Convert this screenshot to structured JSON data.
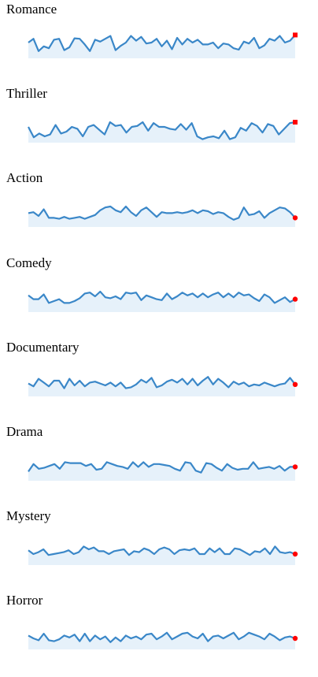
{
  "colors": {
    "line": "#3a87c8",
    "fill": "#e6f1fa",
    "end_marker": "#ff0000"
  },
  "chart_data": [
    {
      "type": "area",
      "title": "Romance",
      "end_marker": "square",
      "values": [
        60,
        68,
        42,
        52,
        48,
        66,
        68,
        44,
        50,
        69,
        68,
        56,
        42,
        66,
        62,
        68,
        74,
        44,
        53,
        60,
        74,
        64,
        72,
        58,
        60,
        68,
        52,
        64,
        46,
        70,
        56,
        68,
        60,
        66,
        56,
        56,
        60,
        48,
        58,
        56,
        48,
        45,
        62,
        58,
        70,
        48,
        54,
        68,
        64,
        74,
        60,
        64,
        76
      ]
    },
    {
      "type": "area",
      "title": "Thriller",
      "end_marker": "square",
      "values": [
        60,
        38,
        46,
        40,
        44,
        64,
        46,
        50,
        60,
        56,
        40,
        60,
        64,
        54,
        44,
        70,
        62,
        64,
        48,
        60,
        62,
        70,
        52,
        68,
        60,
        60,
        56,
        54,
        66,
        54,
        68,
        40,
        34,
        38,
        40,
        36,
        52,
        34,
        38,
        58,
        52,
        68,
        62,
        48,
        66,
        62,
        44,
        56,
        68,
        70
      ]
    },
    {
      "type": "area",
      "title": "Action",
      "end_marker": "circle",
      "values": [
        56,
        58,
        50,
        64,
        46,
        46,
        44,
        48,
        44,
        46,
        48,
        44,
        48,
        52,
        62,
        68,
        70,
        62,
        58,
        70,
        58,
        50,
        62,
        68,
        58,
        48,
        58,
        56,
        56,
        58,
        56,
        58,
        62,
        56,
        62,
        60,
        54,
        58,
        56,
        48,
        42,
        46,
        68,
        52,
        54,
        60,
        46,
        56,
        62,
        68,
        66,
        58,
        46
      ]
    },
    {
      "type": "area",
      "title": "Comedy",
      "end_marker": "circle",
      "values": [
        62,
        54,
        54,
        64,
        46,
        50,
        54,
        46,
        46,
        50,
        56,
        66,
        68,
        60,
        70,
        58,
        56,
        60,
        54,
        68,
        66,
        68,
        52,
        62,
        58,
        54,
        52,
        66,
        54,
        60,
        68,
        62,
        66,
        58,
        66,
        58,
        64,
        68,
        58,
        66,
        58,
        68,
        62,
        64,
        56,
        50,
        64,
        58,
        46,
        52,
        58,
        48,
        54
      ]
    },
    {
      "type": "area",
      "title": "Documentary",
      "end_marker": "circle",
      "values": [
        54,
        48,
        64,
        56,
        48,
        60,
        60,
        44,
        64,
        50,
        60,
        48,
        56,
        58,
        54,
        50,
        56,
        48,
        56,
        44,
        46,
        52,
        62,
        56,
        66,
        46,
        50,
        58,
        62,
        56,
        64,
        52,
        64,
        50,
        60,
        68,
        52,
        64,
        56,
        46,
        58,
        52,
        56,
        48,
        52,
        50,
        56,
        52,
        48,
        52,
        54,
        66,
        52
      ]
    },
    {
      "type": "area",
      "title": "Drama",
      "end_marker": "circle",
      "values": [
        46,
        62,
        52,
        54,
        58,
        62,
        52,
        66,
        64,
        64,
        64,
        58,
        62,
        50,
        52,
        66,
        62,
        58,
        56,
        52,
        66,
        56,
        66,
        56,
        62,
        62,
        60,
        58,
        52,
        48,
        66,
        64,
        48,
        44,
        64,
        62,
        54,
        48,
        62,
        54,
        50,
        52,
        52,
        66,
        52,
        54,
        56,
        52,
        58,
        48,
        56,
        56
      ]
    },
    {
      "type": "area",
      "title": "Mystery",
      "end_marker": "circle",
      "values": [
        58,
        50,
        54,
        60,
        48,
        50,
        52,
        54,
        58,
        50,
        54,
        66,
        60,
        64,
        56,
        56,
        50,
        56,
        58,
        60,
        48,
        56,
        54,
        62,
        58,
        50,
        60,
        64,
        60,
        50,
        58,
        60,
        58,
        62,
        50,
        50,
        62,
        54,
        62,
        50,
        50,
        62,
        60,
        54,
        48,
        56,
        54,
        62,
        50,
        66,
        54,
        52,
        54,
        50
      ]
    },
    {
      "type": "area",
      "title": "Horror",
      "end_marker": "circle",
      "values": [
        56,
        50,
        46,
        60,
        46,
        44,
        48,
        56,
        52,
        58,
        44,
        60,
        44,
        56,
        48,
        54,
        42,
        52,
        44,
        56,
        50,
        54,
        48,
        58,
        60,
        48,
        54,
        62,
        48,
        54,
        60,
        62,
        54,
        50,
        60,
        44,
        54,
        56,
        50,
        56,
        62,
        48,
        54,
        62,
        58,
        54,
        48,
        60,
        54,
        46,
        52,
        54,
        50
      ]
    }
  ]
}
